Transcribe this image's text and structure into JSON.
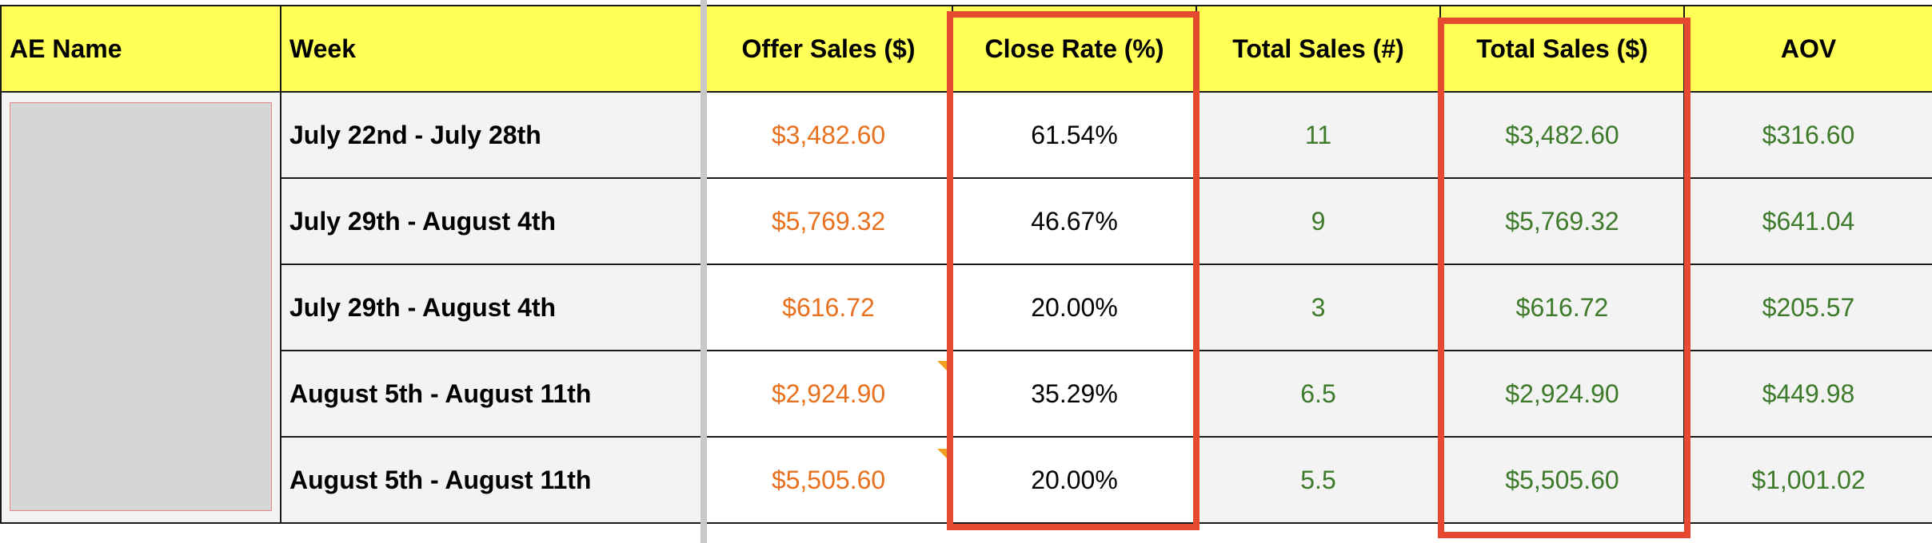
{
  "headers": {
    "ae_name": "AE Name",
    "week": "Week",
    "offer_sales": "Offer Sales ($)",
    "close_rate": "Close Rate (%)",
    "total_sales_count": "Total Sales (#)",
    "total_sales_dollars": "Total Sales ($)",
    "aov": "AOV"
  },
  "rows": [
    {
      "week": "July 22nd - July 28th",
      "offer_sales": "$3,482.60",
      "close_rate": "61.54%",
      "total_sales_count": "11",
      "total_sales_dollars": "$3,482.60",
      "aov": "$316.60"
    },
    {
      "week": "July 29th - August 4th",
      "offer_sales": "$5,769.32",
      "close_rate": "46.67%",
      "total_sales_count": "9",
      "total_sales_dollars": "$5,769.32",
      "aov": "$641.04"
    },
    {
      "week": "July 29th - August 4th",
      "offer_sales": "$616.72",
      "close_rate": "20.00%",
      "total_sales_count": "3",
      "total_sales_dollars": "$616.72",
      "aov": "$205.57"
    },
    {
      "week": "August 5th - August 11th",
      "offer_sales": "$2,924.90",
      "close_rate": "35.29%",
      "total_sales_count": "6.5",
      "total_sales_dollars": "$2,924.90",
      "aov": "$449.98"
    },
    {
      "week": "August 5th - August 11th",
      "offer_sales": "$5,505.60",
      "close_rate": "20.00%",
      "total_sales_count": "5.5",
      "total_sales_dollars": "$5,505.60",
      "aov": "$1,001.02"
    }
  ],
  "colors": {
    "header_bg": "#ffff55",
    "offer_sales_text": "#e8711f",
    "sales_text": "#3d7a2a",
    "highlight_border": "#e64a2e"
  }
}
